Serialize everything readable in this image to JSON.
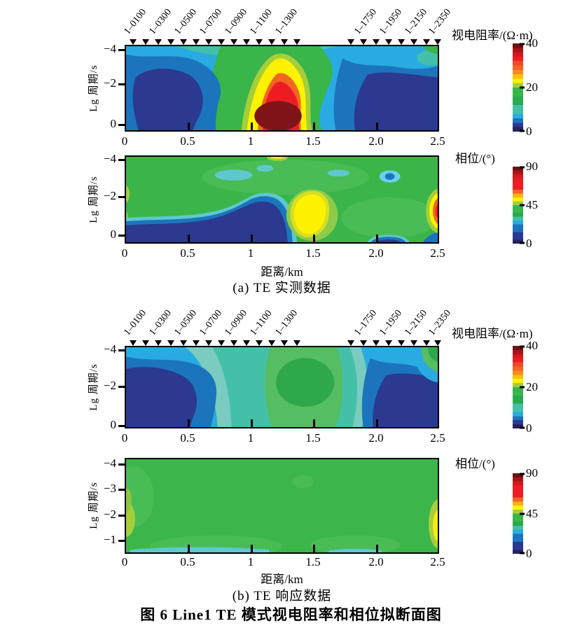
{
  "figure": {
    "caption_a": "(a) TE 实测数据",
    "caption_b": "(b) TE 响应数据",
    "title": "图 6  Line1 TE 模式视电阻率和相位拟断面图"
  },
  "axes": {
    "xlabel": "距离/km",
    "ylabel": "Lg 周期/s",
    "x_ticks": [
      "0",
      "0.5",
      "1",
      "1.5",
      "2.0",
      "2.5"
    ],
    "y_ticks_3": [
      "−4",
      "−2",
      "0"
    ],
    "y_ticks_4": [
      "−4",
      "−3",
      "−2",
      "−1"
    ]
  },
  "stations": {
    "labels": [
      "1–0100",
      "1–0300",
      "1–0500",
      "1–0700",
      "1–0900",
      "1–1100",
      "1–1300",
      "1–1750",
      "1–1950",
      "1–2150",
      "1–2350"
    ]
  },
  "colorbars": {
    "resistivity": {
      "title": "视电阻率/(Ω·m)",
      "ticks_top_to_bottom": [
        "40",
        "20",
        "0"
      ],
      "range": [
        0,
        40
      ],
      "colors_top_to_bottom": [
        "#6d1012",
        "#a81418",
        "#d6181d",
        "#ed1c24",
        "#f04a23",
        "#f26522",
        "#f68b1f",
        "#fdc010",
        "#fff200",
        "#a6ce39",
        "#39b54a",
        "#39b54a",
        "#2aa94e",
        "#2aa94e",
        "#45c0a8",
        "#45c0a8",
        "#29abe2",
        "#1c75bc",
        "#2b3990",
        "#262262"
      ]
    },
    "phase": {
      "title": "相位/(°)",
      "ticks_top_to_bottom": [
        "90",
        "45",
        "0"
      ],
      "range": [
        0,
        90
      ],
      "colors_top_to_bottom": [
        "#6d1012",
        "#a81418",
        "#d6181d",
        "#ed1c24",
        "#ed1c24",
        "#ed1c24",
        "#f26522",
        "#fbb017",
        "#fff200",
        "#a6ce39",
        "#39b54a",
        "#39b54a",
        "#2aa94e",
        "#45c0a8",
        "#29abe2",
        "#1c75bc",
        "#1c75bc",
        "#2b3990",
        "#2b3990",
        "#262262"
      ]
    }
  },
  "chart_data": [
    {
      "type": "heatmap",
      "panel": "(a) TE 实测数据 — 视电阻率拟断面",
      "x": {
        "label": "距离/km",
        "range": [
          0,
          2.5
        ],
        "ticks": [
          0,
          0.5,
          1,
          1.5,
          2.0,
          2.5
        ]
      },
      "y": {
        "label": "Lg 周期/s",
        "ticks": [
          -4,
          -2,
          0
        ]
      },
      "z": {
        "label": "视电阻率/(Ω·m)",
        "range": [
          0,
          40
        ],
        "ticks": [
          0,
          20,
          40
        ]
      },
      "stations_km_labeled": [
        0.1,
        0.3,
        0.5,
        0.7,
        0.9,
        1.1,
        1.3,
        1.75,
        1.95,
        2.15,
        2.35
      ],
      "features": [
        {
          "value": "≈40 Ω·m",
          "where": "高阻异常核 x≈1.0–1.4 km, lgT≈-0.8–0 (暗红)"
        },
        {
          "value": "25–35 Ω·m",
          "where": "黄-橙晕圈包绕高阻核, 顶部延至 lgT≈-3"
        },
        {
          "value": "15–20 Ω·m",
          "where": "绿色中阻条带 x≈0.7–1.6 km 贯穿全周期"
        },
        {
          "value": "<8 Ω·m",
          "where": "深蓝低阻体 x≈0.05–0.65 km 及 x≈1.9–2.5 km"
        },
        {
          "value": "10–14 Ω·m",
          "where": "浅蓝背景与顶部青绿色薄带"
        }
      ]
    },
    {
      "type": "heatmap",
      "panel": "(a) TE 实测数据 — 相位拟断面",
      "x": {
        "label": "距离/km",
        "range": [
          0,
          2.5
        ],
        "ticks": [
          0,
          0.5,
          1,
          1.5,
          2.0,
          2.5
        ]
      },
      "y": {
        "label": "Lg 周期/s",
        "ticks": [
          -4,
          -2,
          0
        ]
      },
      "z": {
        "label": "相位/(°)",
        "range": [
          0,
          90
        ],
        "ticks": [
          0,
          45,
          90
        ]
      },
      "features": [
        {
          "value": "≈45°",
          "where": "绿色背景覆盖大部分断面"
        },
        {
          "value": "<15°",
          "where": "深蓝低相位带沿底部 x≈0–1.4 km, 隆起至 lgT≈-1.5"
        },
        {
          "value": "≈60°",
          "where": "黄色高相位团 x≈1.35–1.7 km, lgT≈-2–0"
        },
        {
          "value": ">75°",
          "where": "红色高相位体贴右边界 x≈2.5 km, lgT≈-2–0"
        },
        {
          "value": "<25°",
          "where": "小蓝点 x≈2.1 km, lgT≈-3; 底部 x≈2.0–2.2 km 深蓝斑"
        }
      ]
    },
    {
      "type": "heatmap",
      "panel": "(b) TE 响应数据 — 视电阻率拟断面",
      "x": {
        "label": "距离/km",
        "range": [
          0,
          2.5
        ],
        "ticks": [
          0,
          0.5,
          1,
          1.5,
          2.0,
          2.5
        ]
      },
      "y": {
        "label": "Lg 周期/s",
        "ticks": [
          -4,
          -2,
          0
        ]
      },
      "z": {
        "label": "视电阻率/(Ω·m)",
        "range": [
          0,
          40
        ],
        "ticks": [
          0,
          20,
          40
        ]
      },
      "features": [
        {
          "value": "18–22 Ω·m",
          "where": "绿色中阻核 x≈1.2–1.6 km, lgT≈-3–0; 右上角小绿斑 x≈2.5 km"
        },
        {
          "value": "12–16 Ω·m",
          "where": "青绿色过渡带包绕绿色核"
        },
        {
          "value": "<8 Ω·m",
          "where": "深蓝低阻体 x≈0–0.6 km 与 x≈2.1–2.5 km"
        },
        {
          "value": "10–12 Ω·m",
          "where": "浅蓝背景贯穿剖面"
        }
      ]
    },
    {
      "type": "heatmap",
      "panel": "(b) TE 响应数据 — 相位拟断面",
      "x": {
        "label": "距离/km",
        "range": [
          0,
          2.5
        ],
        "ticks": [
          0,
          0.5,
          1,
          1.5,
          2.0,
          2.5
        ]
      },
      "y": {
        "label": "Lg 周期/s",
        "ticks": [
          -4,
          -3,
          -2,
          -1
        ]
      },
      "z": {
        "label": "相位/(°)",
        "range": [
          0,
          90
        ],
        "ticks": [
          0,
          45,
          90
        ]
      },
      "features": [
        {
          "value": "≈45°",
          "where": "近均匀绿色背景"
        },
        {
          "value": "≈50–55°",
          "where": "左边缘黄绿斑 lgT≈-2.3–-1 与右边缘黄斑 lgT≈-1.9–-0.8"
        },
        {
          "value": "≈38°",
          "where": "底部薄青色条带 x≈0–1.1 km 与 x≈1.6–2.0 km"
        }
      ]
    }
  ]
}
